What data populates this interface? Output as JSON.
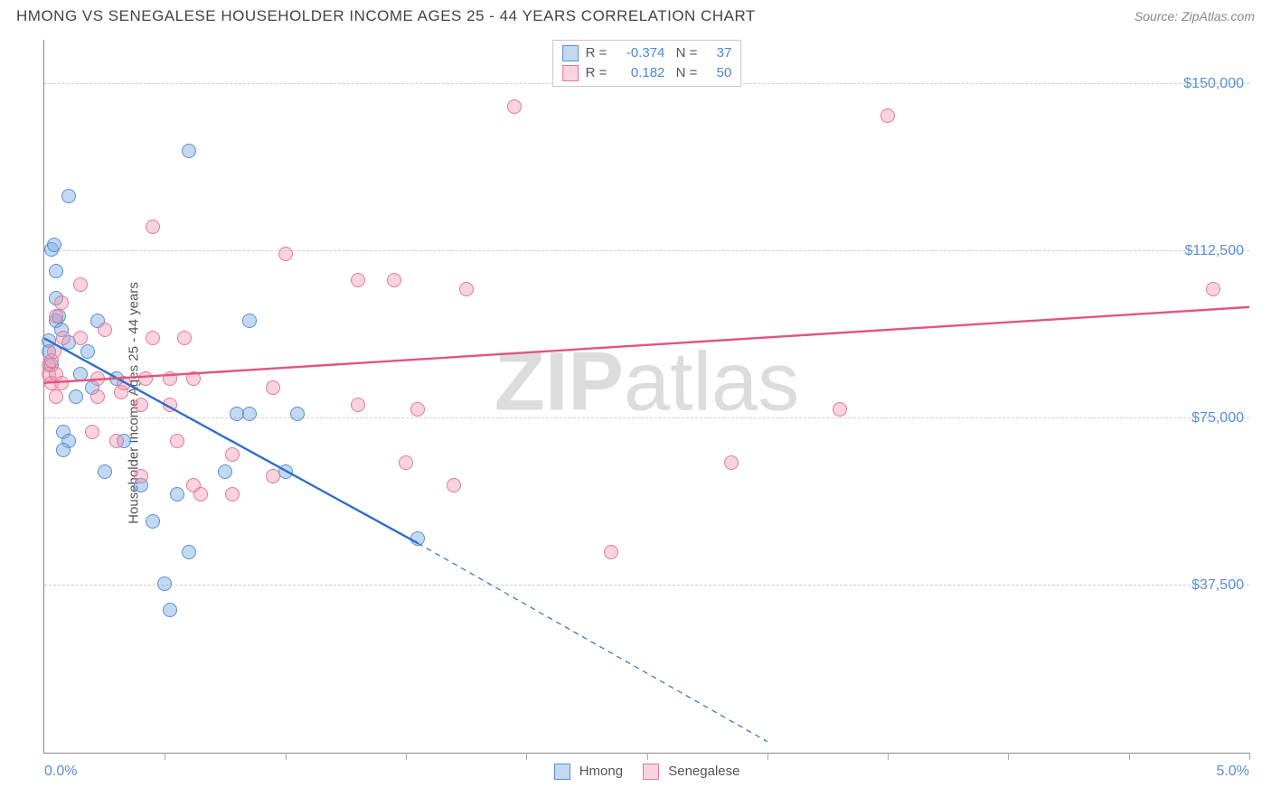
{
  "header": {
    "title": "HMONG VS SENEGALESE HOUSEHOLDER INCOME AGES 25 - 44 YEARS CORRELATION CHART",
    "source_label": "Source:",
    "source_value": "ZipAtlas.com"
  },
  "axis": {
    "y_title": "Householder Income Ages 25 - 44 years",
    "x_min_label": "0.0%",
    "x_max_label": "5.0%",
    "x_min": 0.0,
    "x_max": 5.0,
    "y_min": 0,
    "y_max": 160000,
    "y_ticks": [
      {
        "value": 37500,
        "label": "$37,500"
      },
      {
        "value": 75000,
        "label": "$75,000"
      },
      {
        "value": 112500,
        "label": "$112,500"
      },
      {
        "value": 150000,
        "label": "$150,000"
      }
    ],
    "x_tick_step": 0.5
  },
  "series": [
    {
      "key": "hmong",
      "label": "Hmong",
      "fill": "rgba(120,170,225,0.45)",
      "stroke": "#5a8fd6",
      "line_color": "#2f6fc9",
      "R": "-0.374",
      "N": "37",
      "trend_solid": {
        "x1": 0.0,
        "y1": 93000,
        "x2": 1.55,
        "y2": 47000
      },
      "trend_dashed": {
        "x1": 1.55,
        "y1": 47000,
        "x2": 3.0,
        "y2": 2500
      },
      "points": [
        {
          "x": 0.03,
          "y": 113000
        },
        {
          "x": 0.04,
          "y": 114000
        },
        {
          "x": 0.05,
          "y": 97000
        },
        {
          "x": 0.06,
          "y": 98000
        },
        {
          "x": 0.05,
          "y": 108000
        },
        {
          "x": 0.07,
          "y": 95000
        },
        {
          "x": 0.03,
          "y": 87000
        },
        {
          "x": 0.02,
          "y": 90000
        },
        {
          "x": 0.02,
          "y": 92500
        },
        {
          "x": 0.1,
          "y": 125000
        },
        {
          "x": 0.05,
          "y": 102000
        },
        {
          "x": 0.1,
          "y": 92000
        },
        {
          "x": 0.15,
          "y": 85000
        },
        {
          "x": 0.13,
          "y": 80000
        },
        {
          "x": 0.08,
          "y": 72000
        },
        {
          "x": 0.1,
          "y": 70000
        },
        {
          "x": 0.08,
          "y": 68000
        },
        {
          "x": 0.18,
          "y": 90000
        },
        {
          "x": 0.22,
          "y": 97000
        },
        {
          "x": 0.2,
          "y": 82000
        },
        {
          "x": 0.25,
          "y": 63000
        },
        {
          "x": 0.33,
          "y": 70000
        },
        {
          "x": 0.3,
          "y": 84000
        },
        {
          "x": 0.4,
          "y": 60000
        },
        {
          "x": 0.45,
          "y": 52000
        },
        {
          "x": 0.5,
          "y": 38000
        },
        {
          "x": 0.52,
          "y": 32000
        },
        {
          "x": 0.55,
          "y": 58000
        },
        {
          "x": 0.6,
          "y": 135000
        },
        {
          "x": 0.6,
          "y": 45000
        },
        {
          "x": 0.75,
          "y": 63000
        },
        {
          "x": 0.8,
          "y": 76000
        },
        {
          "x": 0.85,
          "y": 97000
        },
        {
          "x": 0.85,
          "y": 76000
        },
        {
          "x": 1.0,
          "y": 63000
        },
        {
          "x": 1.05,
          "y": 76000
        },
        {
          "x": 1.55,
          "y": 48000
        }
      ]
    },
    {
      "key": "senegalese",
      "label": "Senegalese",
      "fill": "rgba(240,150,175,0.42)",
      "stroke": "#e07a9a",
      "line_color": "#e0557f",
      "R": "0.182",
      "N": "50",
      "trend_solid": {
        "x1": 0.0,
        "y1": 83000,
        "x2": 5.0,
        "y2": 100000
      },
      "trend_dashed": null,
      "points": [
        {
          "x": 0.02,
          "y": 87000
        },
        {
          "x": 0.02,
          "y": 85000
        },
        {
          "x": 0.03,
          "y": 83000
        },
        {
          "x": 0.03,
          "y": 88000
        },
        {
          "x": 0.04,
          "y": 90000
        },
        {
          "x": 0.05,
          "y": 85000
        },
        {
          "x": 0.05,
          "y": 80000
        },
        {
          "x": 0.05,
          "y": 98000
        },
        {
          "x": 0.07,
          "y": 101000
        },
        {
          "x": 0.07,
          "y": 83000
        },
        {
          "x": 0.08,
          "y": 93000
        },
        {
          "x": 0.15,
          "y": 93000
        },
        {
          "x": 0.15,
          "y": 105000
        },
        {
          "x": 0.2,
          "y": 72000
        },
        {
          "x": 0.22,
          "y": 84000
        },
        {
          "x": 0.22,
          "y": 80000
        },
        {
          "x": 0.25,
          "y": 95000
        },
        {
          "x": 0.3,
          "y": 70000
        },
        {
          "x": 0.32,
          "y": 81000
        },
        {
          "x": 0.33,
          "y": 83000
        },
        {
          "x": 0.4,
          "y": 78000
        },
        {
          "x": 0.4,
          "y": 62000
        },
        {
          "x": 0.42,
          "y": 84000
        },
        {
          "x": 0.45,
          "y": 93000
        },
        {
          "x": 0.45,
          "y": 118000
        },
        {
          "x": 0.52,
          "y": 84000
        },
        {
          "x": 0.52,
          "y": 78000
        },
        {
          "x": 0.55,
          "y": 70000
        },
        {
          "x": 0.58,
          "y": 93000
        },
        {
          "x": 0.62,
          "y": 84000
        },
        {
          "x": 0.62,
          "y": 60000
        },
        {
          "x": 0.65,
          "y": 58000
        },
        {
          "x": 0.78,
          "y": 67000
        },
        {
          "x": 0.78,
          "y": 58000
        },
        {
          "x": 0.95,
          "y": 82000
        },
        {
          "x": 0.95,
          "y": 62000
        },
        {
          "x": 1.0,
          "y": 112000
        },
        {
          "x": 1.3,
          "y": 106000
        },
        {
          "x": 1.3,
          "y": 78000
        },
        {
          "x": 1.45,
          "y": 106000
        },
        {
          "x": 1.5,
          "y": 65000
        },
        {
          "x": 1.55,
          "y": 77000
        },
        {
          "x": 1.7,
          "y": 60000
        },
        {
          "x": 1.75,
          "y": 104000
        },
        {
          "x": 1.95,
          "y": 145000
        },
        {
          "x": 2.35,
          "y": 45000
        },
        {
          "x": 2.85,
          "y": 65000
        },
        {
          "x": 3.3,
          "y": 77000
        },
        {
          "x": 3.5,
          "y": 143000
        },
        {
          "x": 4.85,
          "y": 104000
        }
      ]
    }
  ],
  "style": {
    "point_radius": 8,
    "point_stroke_width": 1.5,
    "line_width_solid": 2.4,
    "line_width_dashed": 1.2,
    "background": "#ffffff",
    "grid_color": "#d0d0d0",
    "tick_label_color": "#5a8fd6",
    "title_color": "#444",
    "title_fontsize": 17,
    "axis_title_fontsize": 15,
    "label_fontsize": 16
  },
  "watermark": {
    "prefix": "ZIP",
    "suffix": "atlas"
  }
}
